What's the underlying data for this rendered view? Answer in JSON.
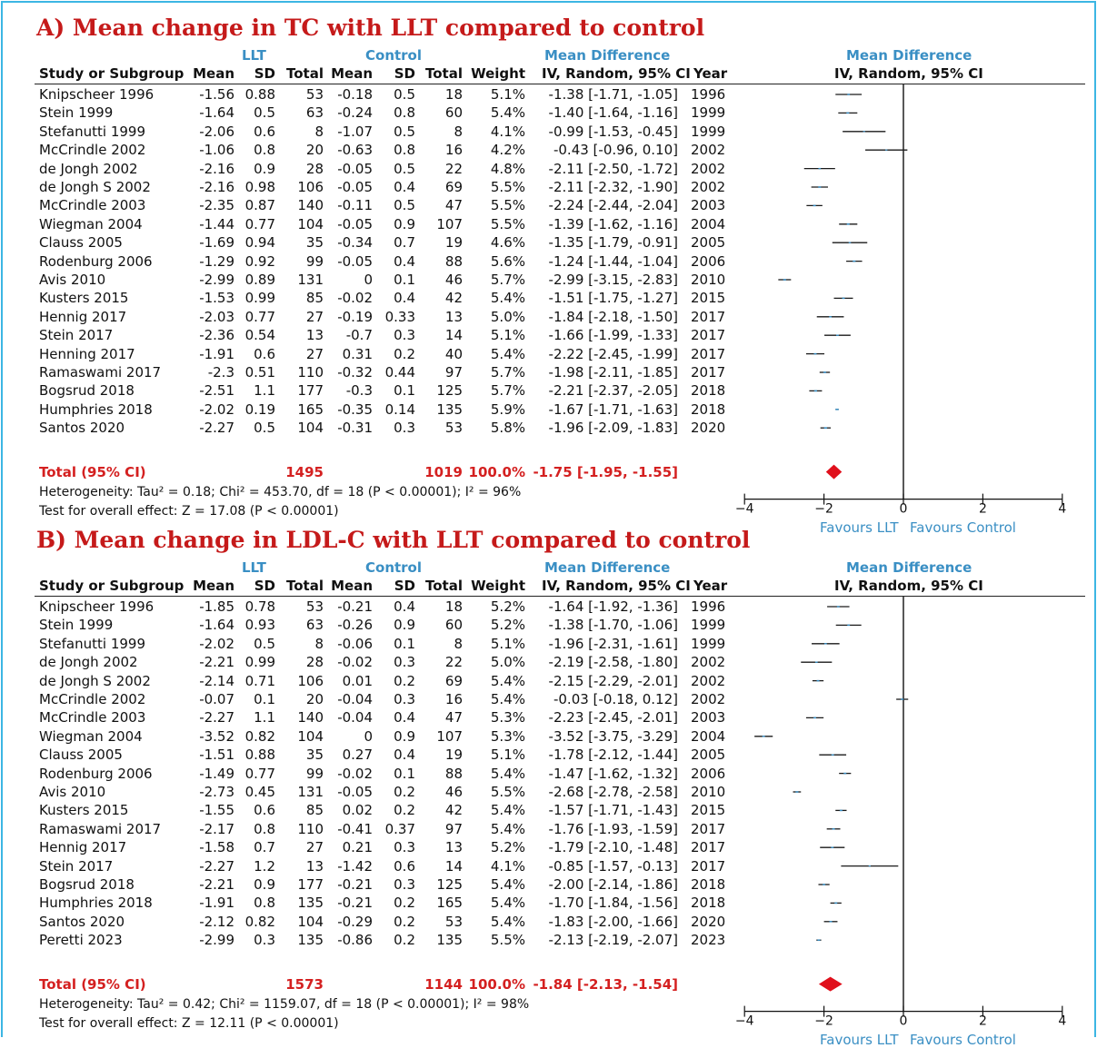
{
  "frame_color": "#3cb6e3",
  "header": {
    "llt": "LLT",
    "control": "Control",
    "md_title": "Mean Difference",
    "md_subtitle": "IV, Random, 95% CI",
    "col_study": "Study or Subgroup",
    "col_mean1": "Mean",
    "col_sd1": "SD",
    "col_total1": "Total",
    "col_mean2": "Mean",
    "col_sd2": "SD",
    "col_total2": "Total",
    "col_weight": "Weight",
    "col_ci": "IV, Random, 95% CI",
    "col_year": "Year"
  },
  "favours": {
    "left": "Favours LLT",
    "right": "Favours Control"
  },
  "colors": {
    "title": "#c51a1a",
    "header_blue": "#3a8fc4",
    "total": "#d42020",
    "marker": "#3a8fc4",
    "diamond": "#e0101c"
  },
  "chart_data": [
    {
      "type": "forest",
      "title": "A) Mean change in TC with LLT compared to control",
      "xlim": [
        -4,
        4
      ],
      "xticks": [
        "-4",
        "-2",
        "0",
        "2",
        "4"
      ],
      "studies": [
        {
          "study": "Knipscheer 1996",
          "m1": "-1.56",
          "sd1": "0.88",
          "n1": "53",
          "m2": "-0.18",
          "sd2": "0.5",
          "n2": "18",
          "weight": "5.1%",
          "ci_text": "-1.38 [-1.71, -1.05]",
          "year": "1996",
          "md": -1.38,
          "lo": -1.71,
          "hi": -1.05
        },
        {
          "study": "Stein 1999",
          "m1": "-1.64",
          "sd1": "0.5",
          "n1": "63",
          "m2": "-0.24",
          "sd2": "0.8",
          "n2": "60",
          "weight": "5.4%",
          "ci_text": "-1.40 [-1.64, -1.16]",
          "year": "1999",
          "md": -1.4,
          "lo": -1.64,
          "hi": -1.16
        },
        {
          "study": "Stefanutti 1999",
          "m1": "-2.06",
          "sd1": "0.6",
          "n1": "8",
          "m2": "-1.07",
          "sd2": "0.5",
          "n2": "8",
          "weight": "4.1%",
          "ci_text": "-0.99 [-1.53, -0.45]",
          "year": "1999",
          "md": -0.99,
          "lo": -1.53,
          "hi": -0.45
        },
        {
          "study": "McCrindle 2002",
          "m1": "-1.06",
          "sd1": "0.8",
          "n1": "20",
          "m2": "-0.63",
          "sd2": "0.8",
          "n2": "16",
          "weight": "4.2%",
          "ci_text": "-0.43 [-0.96, 0.10]",
          "year": "2002",
          "md": -0.43,
          "lo": -0.96,
          "hi": 0.1
        },
        {
          "study": "de Jongh 2002",
          "m1": "-2.16",
          "sd1": "0.9",
          "n1": "28",
          "m2": "-0.05",
          "sd2": "0.5",
          "n2": "22",
          "weight": "4.8%",
          "ci_text": "-2.11 [-2.50, -1.72]",
          "year": "2002",
          "md": -2.11,
          "lo": -2.5,
          "hi": -1.72
        },
        {
          "study": "de Jongh S 2002",
          "m1": "-2.16",
          "sd1": "0.98",
          "n1": "106",
          "m2": "-0.05",
          "sd2": "0.4",
          "n2": "69",
          "weight": "5.5%",
          "ci_text": "-2.11 [-2.32, -1.90]",
          "year": "2002",
          "md": -2.11,
          "lo": -2.32,
          "hi": -1.9
        },
        {
          "study": "McCrindle 2003",
          "m1": "-2.35",
          "sd1": "0.87",
          "n1": "140",
          "m2": "-0.11",
          "sd2": "0.5",
          "n2": "47",
          "weight": "5.5%",
          "ci_text": "-2.24 [-2.44, -2.04]",
          "year": "2003",
          "md": -2.24,
          "lo": -2.44,
          "hi": -2.04
        },
        {
          "study": "Wiegman 2004",
          "m1": "-1.44",
          "sd1": "0.77",
          "n1": "104",
          "m2": "-0.05",
          "sd2": "0.9",
          "n2": "107",
          "weight": "5.5%",
          "ci_text": "-1.39 [-1.62, -1.16]",
          "year": "2004",
          "md": -1.39,
          "lo": -1.62,
          "hi": -1.16
        },
        {
          "study": "Clauss 2005",
          "m1": "-1.69",
          "sd1": "0.94",
          "n1": "35",
          "m2": "-0.34",
          "sd2": "0.7",
          "n2": "19",
          "weight": "4.6%",
          "ci_text": "-1.35 [-1.79, -0.91]",
          "year": "2005",
          "md": -1.35,
          "lo": -1.79,
          "hi": -0.91
        },
        {
          "study": "Rodenburg 2006",
          "m1": "-1.29",
          "sd1": "0.92",
          "n1": "99",
          "m2": "-0.05",
          "sd2": "0.4",
          "n2": "88",
          "weight": "5.6%",
          "ci_text": "-1.24 [-1.44, -1.04]",
          "year": "2006",
          "md": -1.24,
          "lo": -1.44,
          "hi": -1.04
        },
        {
          "study": "Avis 2010",
          "m1": "-2.99",
          "sd1": "0.89",
          "n1": "131",
          "m2": "0",
          "sd2": "0.1",
          "n2": "46",
          "weight": "5.7%",
          "ci_text": "-2.99 [-3.15, -2.83]",
          "year": "2010",
          "md": -2.99,
          "lo": -3.15,
          "hi": -2.83
        },
        {
          "study": "Kusters 2015",
          "m1": "-1.53",
          "sd1": "0.99",
          "n1": "85",
          "m2": "-0.02",
          "sd2": "0.4",
          "n2": "42",
          "weight": "5.4%",
          "ci_text": "-1.51 [-1.75, -1.27]",
          "year": "2015",
          "md": -1.51,
          "lo": -1.75,
          "hi": -1.27
        },
        {
          "study": "Hennig 2017",
          "m1": "-2.03",
          "sd1": "0.77",
          "n1": "27",
          "m2": "-0.19",
          "sd2": "0.33",
          "n2": "13",
          "weight": "5.0%",
          "ci_text": "-1.84 [-2.18, -1.50]",
          "year": "2017",
          "md": -1.84,
          "lo": -2.18,
          "hi": -1.5
        },
        {
          "study": "Stein 2017",
          "m1": "-2.36",
          "sd1": "0.54",
          "n1": "13",
          "m2": "-0.7",
          "sd2": "0.3",
          "n2": "14",
          "weight": "5.1%",
          "ci_text": "-1.66 [-1.99, -1.33]",
          "year": "2017",
          "md": -1.66,
          "lo": -1.99,
          "hi": -1.33
        },
        {
          "study": "Henning 2017",
          "m1": "-1.91",
          "sd1": "0.6",
          "n1": "27",
          "m2": "0.31",
          "sd2": "0.2",
          "n2": "40",
          "weight": "5.4%",
          "ci_text": "-2.22 [-2.45, -1.99]",
          "year": "2017",
          "md": -2.22,
          "lo": -2.45,
          "hi": -1.99
        },
        {
          "study": "Ramaswami 2017",
          "m1": "-2.3",
          "sd1": "0.51",
          "n1": "110",
          "m2": "-0.32",
          "sd2": "0.44",
          "n2": "97",
          "weight": "5.7%",
          "ci_text": "-1.98 [-2.11, -1.85]",
          "year": "2017",
          "md": -1.98,
          "lo": -2.11,
          "hi": -1.85
        },
        {
          "study": "Bogsrud 2018",
          "m1": "-2.51",
          "sd1": "1.1",
          "n1": "177",
          "m2": "-0.3",
          "sd2": "0.1",
          "n2": "125",
          "weight": "5.7%",
          "ci_text": "-2.21 [-2.37, -2.05]",
          "year": "2018",
          "md": -2.21,
          "lo": -2.37,
          "hi": -2.05
        },
        {
          "study": "Humphries 2018",
          "m1": "-2.02",
          "sd1": "0.19",
          "n1": "165",
          "m2": "-0.35",
          "sd2": "0.14",
          "n2": "135",
          "weight": "5.9%",
          "ci_text": "-1.67 [-1.71, -1.63]",
          "year": "2018",
          "md": -1.67,
          "lo": -1.71,
          "hi": -1.63
        },
        {
          "study": "Santos 2020",
          "m1": "-2.27",
          "sd1": "0.5",
          "n1": "104",
          "m2": "-0.31",
          "sd2": "0.3",
          "n2": "53",
          "weight": "5.8%",
          "ci_text": "-1.96 [-2.09, -1.83]",
          "year": "2020",
          "md": -1.96,
          "lo": -2.09,
          "hi": -1.83
        }
      ],
      "total": {
        "label": "Total (95% CI)",
        "n1": "1495",
        "n2": "1019",
        "weight": "100.0%",
        "ci_text": "-1.75 [-1.95, -1.55]",
        "md": -1.75,
        "lo": -1.95,
        "hi": -1.55
      },
      "heterogeneity": "Heterogeneity: Tau² = 0.18; Chi² = 453.70, df = 18 (P < 0.00001); I² = 96%",
      "overall_effect": "Test for overall effect: Z = 17.08 (P < 0.00001)"
    },
    {
      "type": "forest",
      "title": "B) Mean change in LDL-C with LLT compared to control",
      "xlim": [
        -4,
        4
      ],
      "xticks": [
        "-4",
        "-2",
        "0",
        "2",
        "4"
      ],
      "studies": [
        {
          "study": "Knipscheer 1996",
          "m1": "-1.85",
          "sd1": "0.78",
          "n1": "53",
          "m2": "-0.21",
          "sd2": "0.4",
          "n2": "18",
          "weight": "5.2%",
          "ci_text": "-1.64 [-1.92, -1.36]",
          "year": "1996",
          "md": -1.64,
          "lo": -1.92,
          "hi": -1.36
        },
        {
          "study": "Stein 1999",
          "m1": "-1.64",
          "sd1": "0.93",
          "n1": "63",
          "m2": "-0.26",
          "sd2": "0.9",
          "n2": "60",
          "weight": "5.2%",
          "ci_text": "-1.38 [-1.70, -1.06]",
          "year": "1999",
          "md": -1.38,
          "lo": -1.7,
          "hi": -1.06
        },
        {
          "study": "Stefanutti 1999",
          "m1": "-2.02",
          "sd1": "0.5",
          "n1": "8",
          "m2": "-0.06",
          "sd2": "0.1",
          "n2": "8",
          "weight": "5.1%",
          "ci_text": "-1.96 [-2.31, -1.61]",
          "year": "1999",
          "md": -1.96,
          "lo": -2.31,
          "hi": -1.61
        },
        {
          "study": "de Jongh 2002",
          "m1": "-2.21",
          "sd1": "0.99",
          "n1": "28",
          "m2": "-0.02",
          "sd2": "0.3",
          "n2": "22",
          "weight": "5.0%",
          "ci_text": "-2.19 [-2.58, -1.80]",
          "year": "2002",
          "md": -2.19,
          "lo": -2.58,
          "hi": -1.8
        },
        {
          "study": "de Jongh S 2002",
          "m1": "-2.14",
          "sd1": "0.71",
          "n1": "106",
          "m2": "0.01",
          "sd2": "0.2",
          "n2": "69",
          "weight": "5.4%",
          "ci_text": "-2.15 [-2.29, -2.01]",
          "year": "2002",
          "md": -2.15,
          "lo": -2.29,
          "hi": -2.01
        },
        {
          "study": "McCrindle 2002",
          "m1": "-0.07",
          "sd1": "0.1",
          "n1": "20",
          "m2": "-0.04",
          "sd2": "0.3",
          "n2": "16",
          "weight": "5.4%",
          "ci_text": "-0.03 [-0.18, 0.12]",
          "year": "2002",
          "md": -0.03,
          "lo": -0.18,
          "hi": 0.12
        },
        {
          "study": "McCrindle 2003",
          "m1": "-2.27",
          "sd1": "1.1",
          "n1": "140",
          "m2": "-0.04",
          "sd2": "0.4",
          "n2": "47",
          "weight": "5.3%",
          "ci_text": "-2.23 [-2.45, -2.01]",
          "year": "2003",
          "md": -2.23,
          "lo": -2.45,
          "hi": -2.01
        },
        {
          "study": "Wiegman 2004",
          "m1": "-3.52",
          "sd1": "0.82",
          "n1": "104",
          "m2": "0",
          "sd2": "0.9",
          "n2": "107",
          "weight": "5.3%",
          "ci_text": "-3.52 [-3.75, -3.29]",
          "year": "2004",
          "md": -3.52,
          "lo": -3.75,
          "hi": -3.29
        },
        {
          "study": "Clauss 2005",
          "m1": "-1.51",
          "sd1": "0.88",
          "n1": "35",
          "m2": "0.27",
          "sd2": "0.4",
          "n2": "19",
          "weight": "5.1%",
          "ci_text": "-1.78 [-2.12, -1.44]",
          "year": "2005",
          "md": -1.78,
          "lo": -2.12,
          "hi": -1.44
        },
        {
          "study": "Rodenburg 2006",
          "m1": "-1.49",
          "sd1": "0.77",
          "n1": "99",
          "m2": "-0.02",
          "sd2": "0.1",
          "n2": "88",
          "weight": "5.4%",
          "ci_text": "-1.47 [-1.62, -1.32]",
          "year": "2006",
          "md": -1.47,
          "lo": -1.62,
          "hi": -1.32
        },
        {
          "study": "Avis 2010",
          "m1": "-2.73",
          "sd1": "0.45",
          "n1": "131",
          "m2": "-0.05",
          "sd2": "0.2",
          "n2": "46",
          "weight": "5.5%",
          "ci_text": "-2.68 [-2.78, -2.58]",
          "year": "2010",
          "md": -2.68,
          "lo": -2.78,
          "hi": -2.58
        },
        {
          "study": "Kusters 2015",
          "m1": "-1.55",
          "sd1": "0.6",
          "n1": "85",
          "m2": "0.02",
          "sd2": "0.2",
          "n2": "42",
          "weight": "5.4%",
          "ci_text": "-1.57 [-1.71, -1.43]",
          "year": "2015",
          "md": -1.57,
          "lo": -1.71,
          "hi": -1.43
        },
        {
          "study": "Ramaswami 2017",
          "m1": "-2.17",
          "sd1": "0.8",
          "n1": "110",
          "m2": "-0.41",
          "sd2": "0.37",
          "n2": "97",
          "weight": "5.4%",
          "ci_text": "-1.76 [-1.93, -1.59]",
          "year": "2017",
          "md": -1.76,
          "lo": -1.93,
          "hi": -1.59
        },
        {
          "study": "Hennig 2017",
          "m1": "-1.58",
          "sd1": "0.7",
          "n1": "27",
          "m2": "0.21",
          "sd2": "0.3",
          "n2": "13",
          "weight": "5.2%",
          "ci_text": "-1.79 [-2.10, -1.48]",
          "year": "2017",
          "md": -1.79,
          "lo": -2.1,
          "hi": -1.48
        },
        {
          "study": "Stein 2017",
          "m1": "-2.27",
          "sd1": "1.2",
          "n1": "13",
          "m2": "-1.42",
          "sd2": "0.6",
          "n2": "14",
          "weight": "4.1%",
          "ci_text": "-0.85 [-1.57, -0.13]",
          "year": "2017",
          "md": -0.85,
          "lo": -1.57,
          "hi": -0.13
        },
        {
          "study": "Bogsrud 2018",
          "m1": "-2.21",
          "sd1": "0.9",
          "n1": "177",
          "m2": "-0.21",
          "sd2": "0.3",
          "n2": "125",
          "weight": "5.4%",
          "ci_text": "-2.00 [-2.14, -1.86]",
          "year": "2018",
          "md": -2.0,
          "lo": -2.14,
          "hi": -1.86
        },
        {
          "study": "Humphries 2018",
          "m1": "-1.91",
          "sd1": "0.8",
          "n1": "135",
          "m2": "-0.21",
          "sd2": "0.2",
          "n2": "165",
          "weight": "5.4%",
          "ci_text": "-1.70 [-1.84, -1.56]",
          "year": "2018",
          "md": -1.7,
          "lo": -1.84,
          "hi": -1.56
        },
        {
          "study": "Santos 2020",
          "m1": "-2.12",
          "sd1": "0.82",
          "n1": "104",
          "m2": "-0.29",
          "sd2": "0.2",
          "n2": "53",
          "weight": "5.4%",
          "ci_text": "-1.83 [-2.00, -1.66]",
          "year": "2020",
          "md": -1.83,
          "lo": -2.0,
          "hi": -1.66
        },
        {
          "study": "Peretti 2023",
          "m1": "-2.99",
          "sd1": "0.3",
          "n1": "135",
          "m2": "-0.86",
          "sd2": "0.2",
          "n2": "135",
          "weight": "5.5%",
          "ci_text": "-2.13 [-2.19, -2.07]",
          "year": "2023",
          "md": -2.13,
          "lo": -2.19,
          "hi": -2.07
        }
      ],
      "total": {
        "label": "Total (95% CI)",
        "n1": "1573",
        "n2": "1144",
        "weight": "100.0%",
        "ci_text": "-1.84 [-2.13, -1.54]",
        "md": -1.84,
        "lo": -2.13,
        "hi": -1.54
      },
      "heterogeneity": "Heterogeneity: Tau² = 0.42; Chi² = 1159.07, df = 18 (P < 0.00001); I² = 98%",
      "overall_effect": "Test for overall effect: Z = 12.11 (P < 0.00001)"
    }
  ]
}
